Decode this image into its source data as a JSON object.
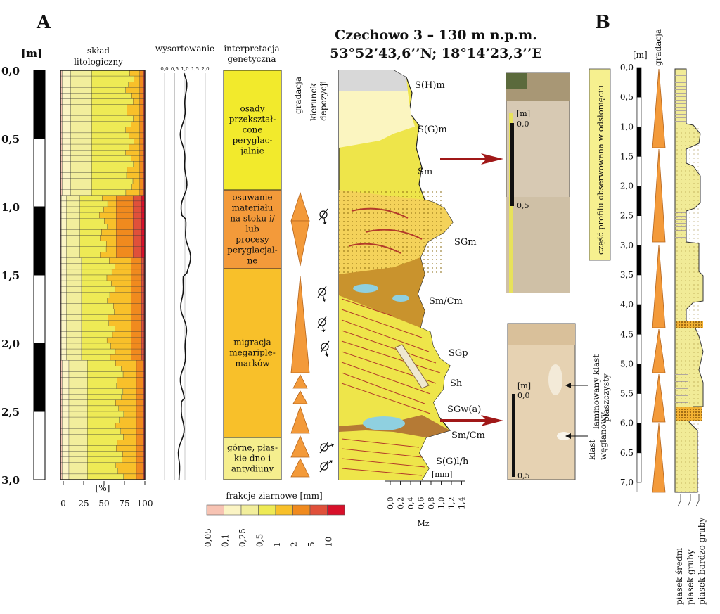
{
  "panel_a": {
    "label": "A",
    "title": "Czechowo 3 – 130 m n.p.m.",
    "coords": "53°52’43,6’’N; 18°14’23,3’’E",
    "depth_unit": "[m]",
    "depth_ticks": [
      "0,0",
      "0,5",
      "1,0",
      "1,5",
      "2,0",
      "2,5",
      "3,0"
    ],
    "lithology_title_1": "skład",
    "lithology_title_2": "litologiczny",
    "percent_label": "[%]",
    "percent_ticks": [
      "0",
      "25",
      "50",
      "75",
      "100"
    ],
    "sorting_title": "wysortowanie",
    "sorting_ticks": [
      "0,0",
      "0,5",
      "1,0",
      "1,5",
      "2,0"
    ],
    "interp_title_1": "interpretacja",
    "interp_title_2": "genetyczna",
    "interp_units": [
      {
        "lines": [
          "osady",
          "przekształ-",
          "cone",
          "peryglac-",
          "jalnie"
        ],
        "color": "#f2ea2c"
      },
      {
        "lines": [
          "osuwanie",
          "materiału",
          "na stoku i/",
          "lub",
          "procesy",
          "peryglacjal-",
          "ne"
        ],
        "color": "#f39a3a"
      },
      {
        "lines": [
          "migracja",
          "megariple-",
          "marków"
        ],
        "color": "#f8c02a"
      },
      {
        "lines": [
          "górne, płas-",
          "kie dno i",
          "antydiuny"
        ],
        "color": "#f5ee8e"
      }
    ],
    "grading_label": "gradacja",
    "direction_label_1": "kierunek",
    "direction_label_2": "depozycji",
    "facies": [
      "S(H)m",
      "S(G)m",
      "Sm",
      "SGm",
      "Sm/Cm",
      "SGp",
      "Sh",
      "SGw(a)",
      "Sm/Cm",
      "S(G)l/h"
    ],
    "mz_unit": "[mm]",
    "mz_ticks": [
      "0,0",
      "0,2",
      "0,4",
      "0,6",
      "0,8",
      "1,0",
      "1,2",
      "1,4"
    ],
    "mz_label": "Mz",
    "grain_title": "frakcje ziarnowe [mm]",
    "grain_classes": [
      {
        "label": "0,05",
        "color": "#f7c3b3"
      },
      {
        "label": "0,1",
        "color": "#fbf4c4"
      },
      {
        "label": "0,25",
        "color": "#f2ee9c"
      },
      {
        "label": "0,5",
        "color": "#eeea55"
      },
      {
        "label": "1",
        "color": "#f8c02a"
      },
      {
        "label": "2",
        "color": "#f08a1e"
      },
      {
        "label": "5",
        "color": "#e0503a"
      },
      {
        "label": "10",
        "color": "#d8102a"
      }
    ],
    "photo1_scale": [
      "[m]",
      "0,0",
      "0,5"
    ],
    "photo2_scale": [
      "[m]",
      "0,0",
      "0,5"
    ],
    "note_1_line1": "laminowany klast",
    "note_1_line2": "piaszczysty",
    "note_2_line1": "klast",
    "note_2_line2": "węglanowy"
  },
  "panel_b": {
    "label": "B",
    "depth_unit": "[m]",
    "grading_label": "gradacja",
    "depth_ticks": [
      "0,0",
      "0,5",
      "1,0",
      "1,5",
      "2,0",
      "2,5",
      "3,0",
      "3,5",
      "4,0",
      "4,5",
      "5,0",
      "5,5",
      "6,0",
      "6,5",
      "7,0"
    ],
    "observed_note": "część profilu obserwowana w odsłonięciu",
    "legend": [
      "piasek średni",
      "piasek gruby",
      "piasek bardzo gruby"
    ]
  },
  "colors": {
    "arrow": "#a01818",
    "grading": "#f39a3a",
    "note_bg": "#f6f08f"
  }
}
